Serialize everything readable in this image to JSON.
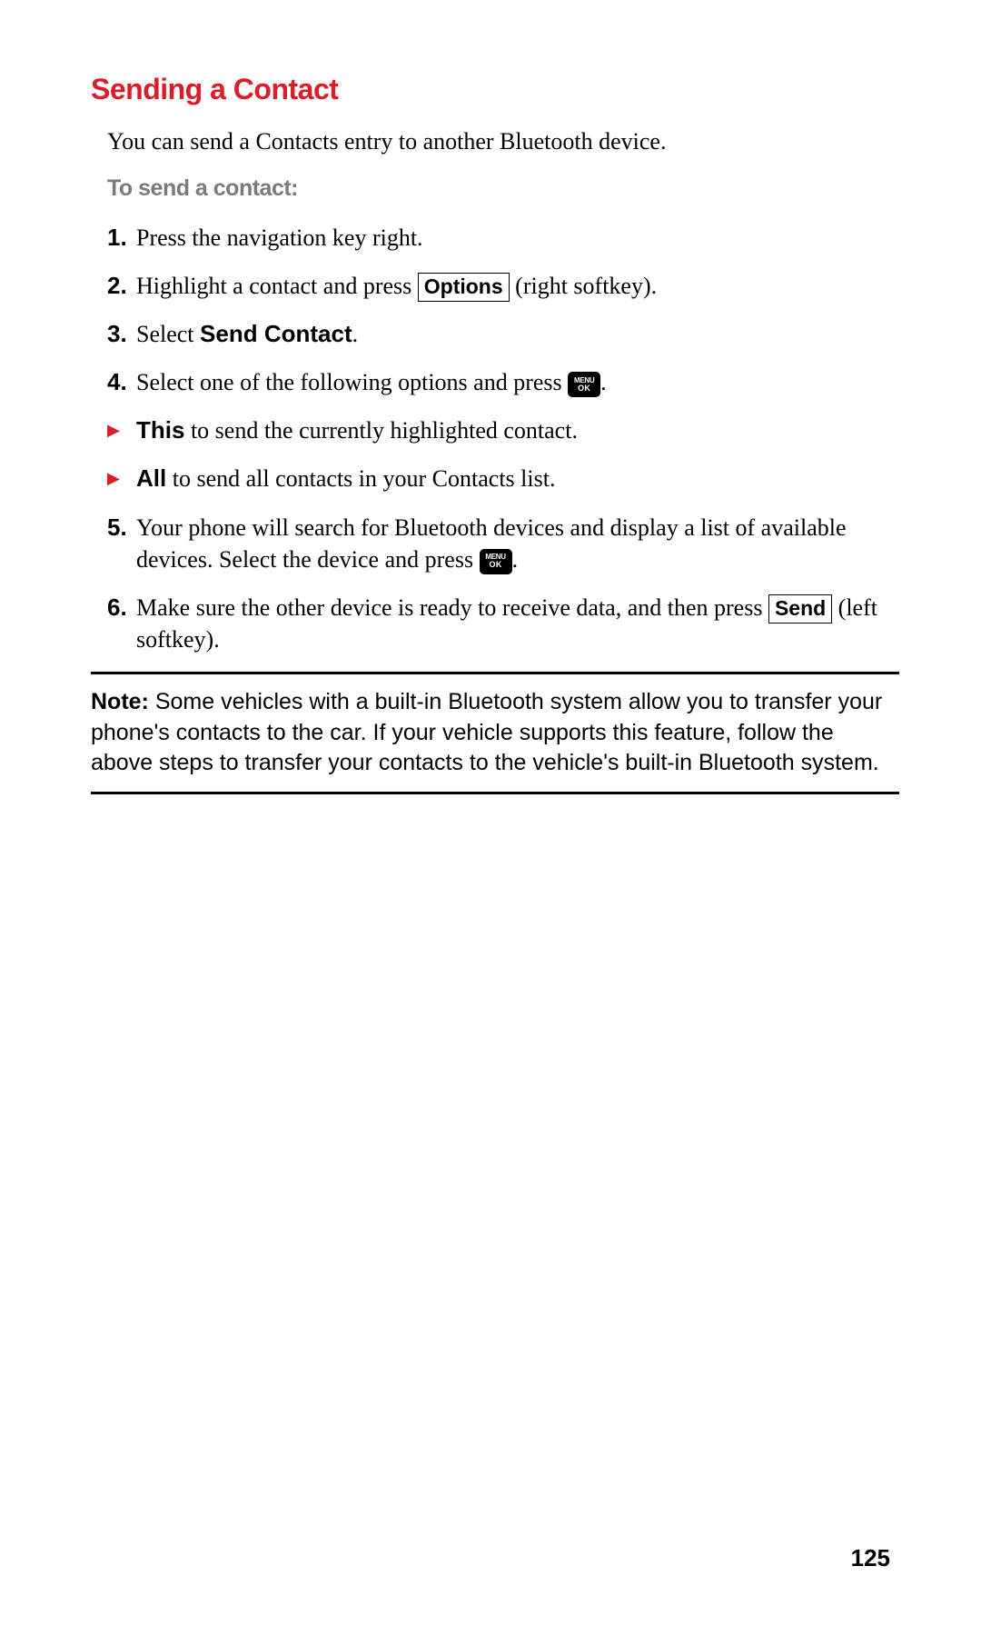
{
  "heading": "Sending a Contact",
  "intro": "You can send a Contacts entry to another Bluetooth device.",
  "subheading": "To send a contact:",
  "steps": {
    "s1_num": "1.",
    "s1_text": "Press the navigation key right.",
    "s2_num": "2.",
    "s2_pre": "Highlight a contact and press ",
    "s2_key": "Options",
    "s2_post": " (right softkey).",
    "s3_num": "3.",
    "s3_pre": "Select ",
    "s3_bold": "Send Contact",
    "s3_post": ".",
    "s4_num": "4.",
    "s4_pre": "Select one of the following options and press ",
    "s4_post": ".",
    "b1_bold": "This",
    "b1_text": " to send the currently highlighted contact.",
    "b2_bold": "All",
    "b2_text": " to send all contacts in your Contacts list.",
    "s5_num": "5.",
    "s5_pre": "Your phone will search for Bluetooth devices and display a list of available devices. Select the device and press ",
    "s5_post": ".",
    "s6_num": "6.",
    "s6_pre": "Make sure the other device is ready to receive data, and then press ",
    "s6_key": "Send",
    "s6_post": " (left softkey)."
  },
  "menuok": {
    "line1": "MENU",
    "line2": "OK"
  },
  "note": {
    "label": "Note:",
    "text": " Some vehicles with a built-in Bluetooth system allow you to transfer your phone's contacts to the car. If your vehicle supports this feature, follow the above steps to transfer your contacts to the vehicle's built-in Bluetooth system."
  },
  "pageNumber": "125",
  "bulletGlyph": "▶",
  "colors": {
    "accent": "#d91e2a",
    "subheading": "#7a7a7a",
    "text": "#000000",
    "background": "#ffffff"
  }
}
